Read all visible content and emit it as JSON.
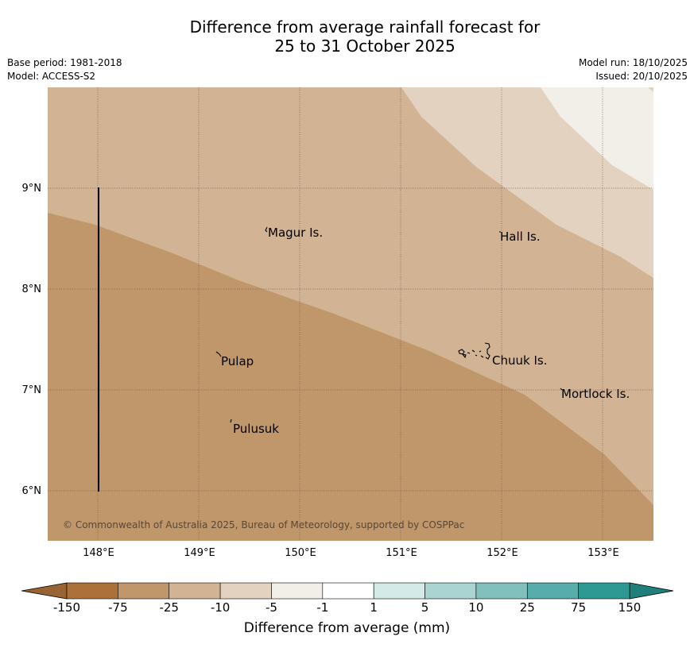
{
  "title": {
    "line1": "Difference from average rainfall forecast for",
    "line2": "25 to 31 October 2025"
  },
  "meta": {
    "base_period": "Base period: 1981-2018",
    "model": "Model: ACCESS-S2",
    "model_run": "Model run: 18/10/2025",
    "issued": "Issued: 20/10/2025"
  },
  "map": {
    "lon_range": [
      147.5,
      153.5
    ],
    "lat_range": [
      5.5,
      10.0
    ],
    "lon_ticks": [
      148,
      149,
      150,
      151,
      152,
      153
    ],
    "lat_ticks": [
      6,
      7,
      8,
      9
    ],
    "lon_tick_labels": [
      "148°E",
      "149°E",
      "150°E",
      "151°E",
      "152°E",
      "153°E"
    ],
    "lat_tick_labels": [
      "6°N",
      "7°N",
      "8°N",
      "9°N"
    ],
    "bands": [
      {
        "range": "-75 to -25",
        "color": "#c0976b"
      },
      {
        "range": "-25 to -10",
        "color": "#d2b495"
      },
      {
        "range": "-10 to -5",
        "color": "#e3d2c0"
      },
      {
        "range": "-5 to -1",
        "color": "#f2eee8"
      }
    ],
    "places": [
      {
        "name": "Magur Is.",
        "lon": 149.65,
        "lat": 8.55
      },
      {
        "name": "Hall Is.",
        "lon": 151.97,
        "lat": 8.52
      },
      {
        "name": "Pulap",
        "lon": 149.18,
        "lat": 7.33
      },
      {
        "name": "Chuuk Is.",
        "lon": 151.85,
        "lat": 7.33
      },
      {
        "name": "Mortlock Is.",
        "lon": 152.58,
        "lat": 6.98
      },
      {
        "name": "Pulusuk",
        "lon": 149.3,
        "lat": 6.68
      }
    ],
    "copyright": "© Commonwealth of Australia 2025, Bureau of Meteorology, supported by COSPPac"
  },
  "colorbar": {
    "ticks": [
      "-150",
      "-75",
      "-25",
      "-10",
      "-5",
      "-1",
      "1",
      "5",
      "10",
      "25",
      "75",
      "150"
    ],
    "colors": [
      "#ac703a",
      "#c0976b",
      "#d2b495",
      "#e3d2c0",
      "#f2eee8",
      "#ffffff",
      "#d3eae8",
      "#aad4d2",
      "#82c0bd",
      "#58aca9",
      "#2e9893"
    ],
    "under_color": "#9a6333",
    "over_color": "#1f807b",
    "label": "Difference from average (mm)"
  }
}
